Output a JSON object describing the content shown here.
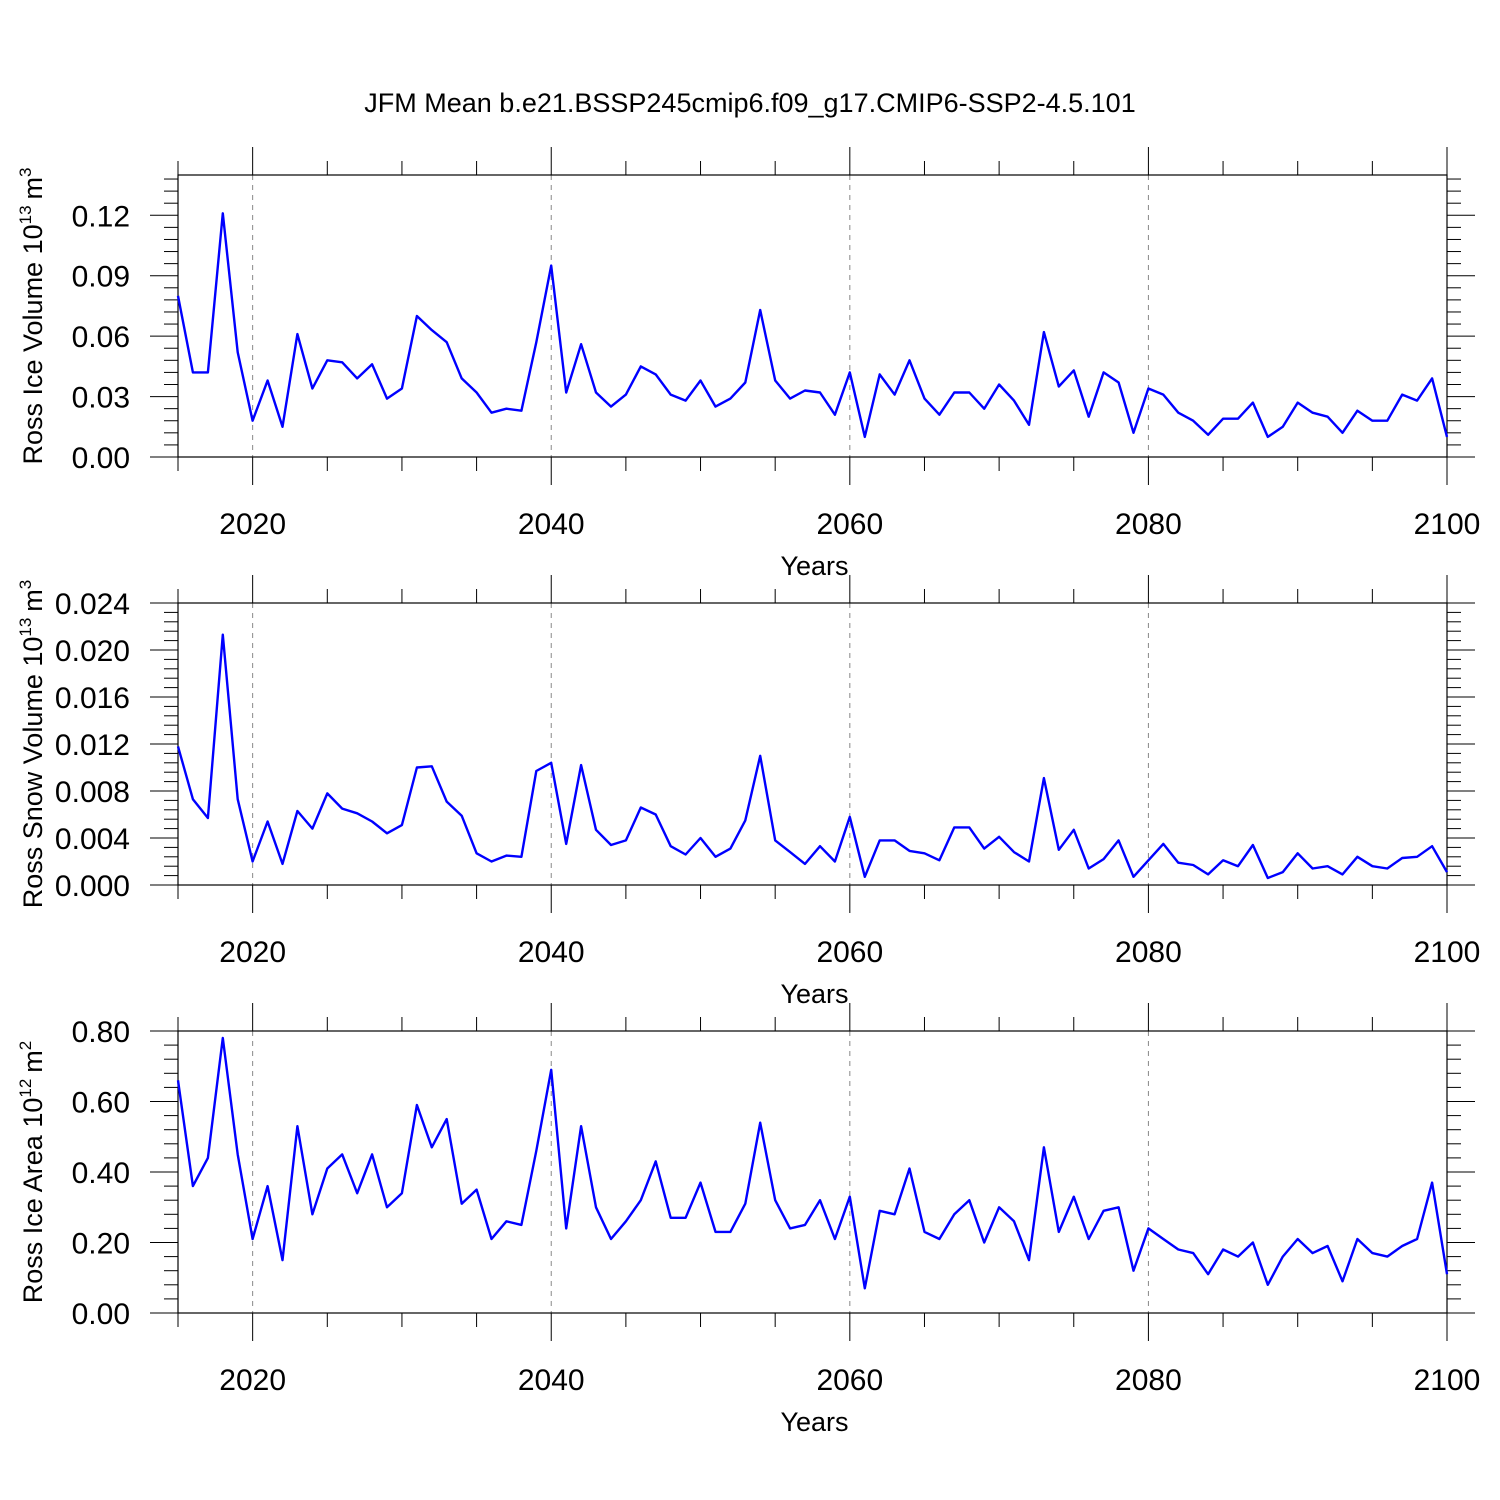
{
  "title": "JFM Mean b.e21.BSSP245cmip6.f09_g17.CMIP6-SSP2-4.5.101",
  "line_color": "#0000ff",
  "chart_data": [
    {
      "type": "line",
      "xlabel": "Years",
      "ylabel": {
        "text": "Ross Ice Volume 10",
        "exp": "13",
        "unit": "m",
        "unit_exp": "3"
      },
      "xlim": [
        2015,
        2100
      ],
      "ylim": [
        0.0,
        0.14
      ],
      "xticks": [
        2020,
        2040,
        2060,
        2080,
        2100
      ],
      "yticks": [
        0.0,
        0.03,
        0.06,
        0.09,
        0.12
      ],
      "ytick_labels": [
        "0.00",
        "0.03",
        "0.06",
        "0.09",
        "0.12"
      ],
      "x_grid": true,
      "series": [
        {
          "x": [
            2015,
            2016,
            2017,
            2018,
            2019,
            2020,
            2021,
            2022,
            2023,
            2024,
            2025,
            2026,
            2027,
            2028,
            2029,
            2030,
            2031,
            2032,
            2033,
            2034,
            2035,
            2036,
            2037,
            2038,
            2039,
            2040,
            2041,
            2042,
            2043,
            2044,
            2045,
            2046,
            2047,
            2048,
            2049,
            2050,
            2051,
            2052,
            2053,
            2054,
            2055,
            2056,
            2057,
            2058,
            2059,
            2060,
            2061,
            2062,
            2063,
            2064,
            2065,
            2066,
            2067,
            2068,
            2069,
            2070,
            2071,
            2072,
            2073,
            2074,
            2075,
            2076,
            2077,
            2078,
            2079,
            2080,
            2081,
            2082,
            2083,
            2084,
            2085,
            2086,
            2087,
            2088,
            2089,
            2090,
            2091,
            2092,
            2093,
            2094,
            2095,
            2096,
            2097,
            2098,
            2099,
            2100
          ],
          "y": [
            0.08,
            0.042,
            0.042,
            0.121,
            0.052,
            0.018,
            0.038,
            0.015,
            0.061,
            0.034,
            0.048,
            0.047,
            0.039,
            0.046,
            0.029,
            0.034,
            0.07,
            0.063,
            0.057,
            0.039,
            0.032,
            0.022,
            0.024,
            0.023,
            0.057,
            0.095,
            0.032,
            0.056,
            0.032,
            0.025,
            0.031,
            0.045,
            0.041,
            0.031,
            0.028,
            0.038,
            0.025,
            0.029,
            0.037,
            0.073,
            0.038,
            0.029,
            0.033,
            0.032,
            0.021,
            0.042,
            0.01,
            0.041,
            0.031,
            0.048,
            0.029,
            0.021,
            0.032,
            0.032,
            0.024,
            0.036,
            0.028,
            0.016,
            0.062,
            0.035,
            0.043,
            0.02,
            0.042,
            0.037,
            0.012,
            0.034,
            0.031,
            0.022,
            0.018,
            0.011,
            0.019,
            0.019,
            0.027,
            0.01,
            0.015,
            0.027,
            0.022,
            0.02,
            0.012,
            0.023,
            0.018,
            0.018,
            0.031,
            0.028,
            0.039,
            0.01
          ]
        }
      ]
    },
    {
      "type": "line",
      "xlabel": "Years",
      "ylabel": {
        "text": "Ross Snow Volume 10",
        "exp": "13",
        "unit": "m",
        "unit_exp": "3"
      },
      "xlim": [
        2015,
        2100
      ],
      "ylim": [
        0.0,
        0.024
      ],
      "xticks": [
        2020,
        2040,
        2060,
        2080,
        2100
      ],
      "yticks": [
        0.0,
        0.004,
        0.008,
        0.012,
        0.016,
        0.02,
        0.024
      ],
      "ytick_labels": [
        "0.000",
        "0.004",
        "0.008",
        "0.012",
        "0.016",
        "0.020",
        "0.024"
      ],
      "x_grid": true,
      "series": [
        {
          "x": [
            2015,
            2016,
            2017,
            2018,
            2019,
            2020,
            2021,
            2022,
            2023,
            2024,
            2025,
            2026,
            2027,
            2028,
            2029,
            2030,
            2031,
            2032,
            2033,
            2034,
            2035,
            2036,
            2037,
            2038,
            2039,
            2040,
            2041,
            2042,
            2043,
            2044,
            2045,
            2046,
            2047,
            2048,
            2049,
            2050,
            2051,
            2052,
            2053,
            2054,
            2055,
            2056,
            2057,
            2058,
            2059,
            2060,
            2061,
            2062,
            2063,
            2064,
            2065,
            2066,
            2067,
            2068,
            2069,
            2070,
            2071,
            2072,
            2073,
            2074,
            2075,
            2076,
            2077,
            2078,
            2079,
            2080,
            2081,
            2082,
            2083,
            2084,
            2085,
            2086,
            2087,
            2088,
            2089,
            2090,
            2091,
            2092,
            2093,
            2094,
            2095,
            2096,
            2097,
            2098,
            2099,
            2100
          ],
          "y": [
            0.0118,
            0.0073,
            0.0057,
            0.0213,
            0.0073,
            0.002,
            0.0054,
            0.0018,
            0.0063,
            0.0048,
            0.0078,
            0.0065,
            0.0061,
            0.0054,
            0.0044,
            0.0051,
            0.01,
            0.0101,
            0.0071,
            0.0059,
            0.0027,
            0.002,
            0.0025,
            0.0024,
            0.0097,
            0.0104,
            0.0035,
            0.0102,
            0.0047,
            0.0034,
            0.0038,
            0.0066,
            0.006,
            0.0033,
            0.0026,
            0.004,
            0.0024,
            0.0031,
            0.0055,
            0.011,
            0.0038,
            0.0028,
            0.0018,
            0.0033,
            0.002,
            0.0058,
            0.0007,
            0.0038,
            0.0038,
            0.0029,
            0.0027,
            0.0021,
            0.0049,
            0.0049,
            0.0031,
            0.0041,
            0.0028,
            0.002,
            0.0091,
            0.003,
            0.0047,
            0.0014,
            0.0022,
            0.0038,
            0.0007,
            0.0021,
            0.0035,
            0.0019,
            0.0017,
            0.0009,
            0.0021,
            0.0016,
            0.0034,
            0.0006,
            0.0011,
            0.0027,
            0.0014,
            0.0016,
            0.0009,
            0.0024,
            0.0016,
            0.0014,
            0.0023,
            0.0024,
            0.0033,
            0.0011
          ]
        }
      ]
    },
    {
      "type": "line",
      "xlabel": "Years",
      "ylabel": {
        "text": "Ross Ice Area 10",
        "exp": "12",
        "unit": "m",
        "unit_exp": "2"
      },
      "xlim": [
        2015,
        2100
      ],
      "ylim": [
        0.0,
        0.8
      ],
      "xticks": [
        2020,
        2040,
        2060,
        2080,
        2100
      ],
      "yticks": [
        0.0,
        0.2,
        0.4,
        0.6,
        0.8
      ],
      "ytick_labels": [
        "0.00",
        "0.20",
        "0.40",
        "0.60",
        "0.80"
      ],
      "x_grid": true,
      "series": [
        {
          "x": [
            2015,
            2016,
            2017,
            2018,
            2019,
            2020,
            2021,
            2022,
            2023,
            2024,
            2025,
            2026,
            2027,
            2028,
            2029,
            2030,
            2031,
            2032,
            2033,
            2034,
            2035,
            2036,
            2037,
            2038,
            2039,
            2040,
            2041,
            2042,
            2043,
            2044,
            2045,
            2046,
            2047,
            2048,
            2049,
            2050,
            2051,
            2052,
            2053,
            2054,
            2055,
            2056,
            2057,
            2058,
            2059,
            2060,
            2061,
            2062,
            2063,
            2064,
            2065,
            2066,
            2067,
            2068,
            2069,
            2070,
            2071,
            2072,
            2073,
            2074,
            2075,
            2076,
            2077,
            2078,
            2079,
            2080,
            2081,
            2082,
            2083,
            2084,
            2085,
            2086,
            2087,
            2088,
            2089,
            2090,
            2091,
            2092,
            2093,
            2094,
            2095,
            2096,
            2097,
            2098,
            2099,
            2100
          ],
          "y": [
            0.66,
            0.36,
            0.44,
            0.78,
            0.45,
            0.21,
            0.36,
            0.15,
            0.53,
            0.28,
            0.41,
            0.45,
            0.34,
            0.45,
            0.3,
            0.34,
            0.59,
            0.47,
            0.55,
            0.31,
            0.35,
            0.21,
            0.26,
            0.25,
            0.46,
            0.69,
            0.24,
            0.53,
            0.3,
            0.21,
            0.26,
            0.32,
            0.43,
            0.27,
            0.27,
            0.37,
            0.23,
            0.23,
            0.31,
            0.54,
            0.32,
            0.24,
            0.25,
            0.32,
            0.21,
            0.33,
            0.07,
            0.29,
            0.28,
            0.41,
            0.23,
            0.21,
            0.28,
            0.32,
            0.2,
            0.3,
            0.26,
            0.15,
            0.47,
            0.23,
            0.33,
            0.21,
            0.29,
            0.3,
            0.12,
            0.24,
            0.21,
            0.18,
            0.17,
            0.11,
            0.18,
            0.16,
            0.2,
            0.08,
            0.16,
            0.21,
            0.17,
            0.19,
            0.09,
            0.21,
            0.17,
            0.16,
            0.19,
            0.21,
            0.37,
            0.11
          ]
        }
      ]
    }
  ]
}
